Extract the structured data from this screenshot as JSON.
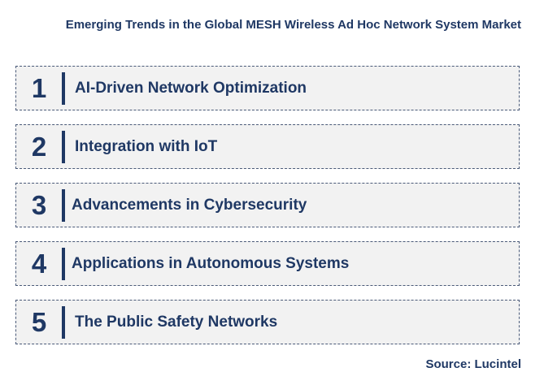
{
  "title": "Emerging Trends in the Global MESH Wireless Ad Hoc Network System Market",
  "trends": [
    {
      "number": "1",
      "label": "AI-Driven Network Optimization"
    },
    {
      "number": "2",
      "label": "Integration with IoT"
    },
    {
      "number": "3",
      "label": "Advancements in Cybersecurity"
    },
    {
      "number": "4",
      "label": "Applications in Autonomous Systems"
    },
    {
      "number": "5",
      "label": "The Public Safety Networks"
    }
  ],
  "source": "Source: Lucintel",
  "colors": {
    "text": "#1f3864",
    "row_background": "#f2f2f2",
    "row_border": "#4a5a78"
  }
}
